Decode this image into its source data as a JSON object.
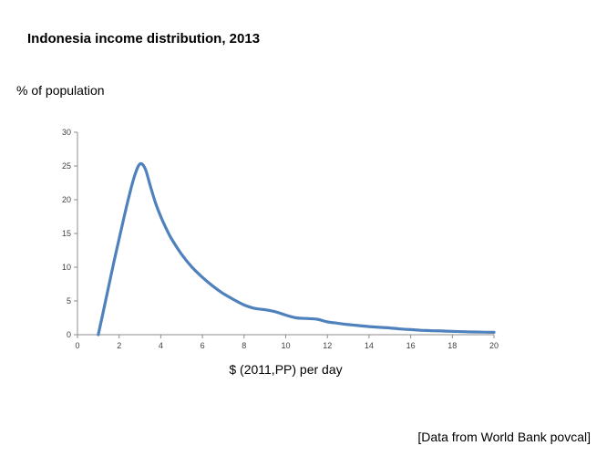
{
  "chart_data": {
    "type": "line",
    "title": "Indonesia income distribution, 2013",
    "ylabel": "% of population",
    "xlabel": "$ (2011,PP) per day",
    "xlim": [
      0,
      20
    ],
    "ylim": [
      0,
      30
    ],
    "x_ticks": [
      0,
      2,
      4,
      6,
      8,
      10,
      12,
      14,
      16,
      18,
      20
    ],
    "y_ticks": [
      0,
      5,
      10,
      15,
      20,
      25,
      30
    ],
    "grid": false,
    "legend": false,
    "line_color": "#4f81bd",
    "axis_color": "#8c8c8c",
    "x": [
      1,
      1.25,
      1.5,
      1.75,
      2,
      2.25,
      2.5,
      2.75,
      3,
      3.25,
      3.5,
      3.75,
      4,
      4.25,
      4.5,
      5,
      5.5,
      6,
      6.5,
      7,
      7.5,
      8,
      8.5,
      9,
      9.5,
      10,
      10.5,
      11,
      11.5,
      12,
      12.5,
      13,
      13.5,
      14,
      14.5,
      15,
      15.5,
      16,
      16.5,
      17,
      17.5,
      18,
      18.5,
      19,
      19.5,
      20
    ],
    "y": [
      0,
      3.6,
      7.2,
      10.8,
      14.2,
      17.6,
      20.8,
      23.6,
      25.3,
      24.6,
      22.0,
      19.5,
      17.5,
      15.8,
      14.3,
      11.9,
      10.0,
      8.5,
      7.2,
      6.1,
      5.2,
      4.4,
      3.9,
      3.7,
      3.4,
      2.9,
      2.5,
      2.4,
      2.3,
      1.9,
      1.7,
      1.5,
      1.35,
      1.2,
      1.1,
      1.0,
      0.85,
      0.75,
      0.65,
      0.6,
      0.55,
      0.5,
      0.45,
      0.4,
      0.38,
      0.35
    ]
  },
  "footer": {
    "source_note": "[Data from World Bank povcal]"
  }
}
